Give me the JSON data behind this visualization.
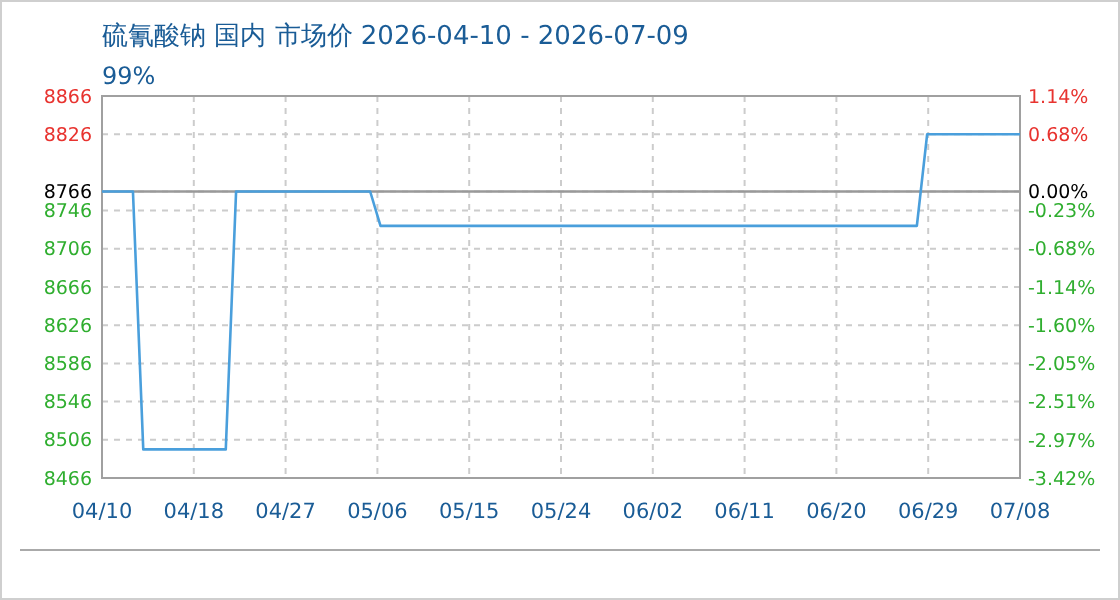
{
  "chart_data": {
    "type": "line",
    "title": "硫氰酸钠 国内 市场价 2026-04-10 - 2026-07-09",
    "subtitle": "99%",
    "series": [
      {
        "color": "#4a9fdc",
        "x": [
          "2026-04-10",
          "2026-04-13",
          "2026-04-14",
          "2026-04-22",
          "2026-04-23",
          "2026-05-06",
          "2026-05-07",
          "2026-06-28",
          "2026-06-29",
          "2026-07-08"
        ],
        "values": [
          8766,
          8766,
          8496,
          8496,
          8766,
          8766,
          8730,
          8730,
          8826,
          8826
        ]
      }
    ],
    "xlim": [
      "2026-04-10",
      "2026-07-08"
    ],
    "xticks": [
      {
        "value": "2026-04-10",
        "label": "04/10"
      },
      {
        "value": "2026-04-18T21:36",
        "label": "04/18"
      },
      {
        "value": "2026-04-27T19:12",
        "label": "04/27"
      },
      {
        "value": "2026-05-06T16:48",
        "label": "05/06"
      },
      {
        "value": "2026-05-15T14:24",
        "label": "05/15"
      },
      {
        "value": "2026-05-24T12:00",
        "label": "05/24"
      },
      {
        "value": "2026-06-02T09:36",
        "label": "06/02"
      },
      {
        "value": "2026-06-11T07:12",
        "label": "06/11"
      },
      {
        "value": "2026-06-20T04:48",
        "label": "06/20"
      },
      {
        "value": "2026-06-29T02:24",
        "label": "06/29"
      },
      {
        "value": "2026-07-08",
        "label": "07/08"
      }
    ],
    "ylim": [
      8466,
      8866
    ],
    "yticks": [
      8466,
      8506,
      8546,
      8586,
      8626,
      8666,
      8706,
      8746,
      8766,
      8826,
      8866
    ],
    "y2lim": [
      -3.42,
      1.14
    ],
    "y2ticks": [
      {
        "value": -3.42,
        "label": "-3.42%"
      },
      {
        "value": -2.97,
        "label": "-2.97%"
      },
      {
        "value": -2.51,
        "label": "-2.51%"
      },
      {
        "value": -2.05,
        "label": "-2.05%"
      },
      {
        "value": -1.6,
        "label": "-1.60%"
      },
      {
        "value": -1.14,
        "label": "-1.14%"
      },
      {
        "value": -0.68,
        "label": "-0.68%"
      },
      {
        "value": -0.23,
        "label": "-0.23%"
      },
      {
        "value": 0,
        "label": "0.00%"
      },
      {
        "value": 0.68,
        "label": "0.68%"
      },
      {
        "value": 1.14,
        "label": "1.14%"
      }
    ],
    "ref_lines": [
      {
        "axis": "y",
        "value": 8766,
        "color": "#999999"
      }
    ],
    "grid": true,
    "marker": "none",
    "line_style": "solid"
  }
}
